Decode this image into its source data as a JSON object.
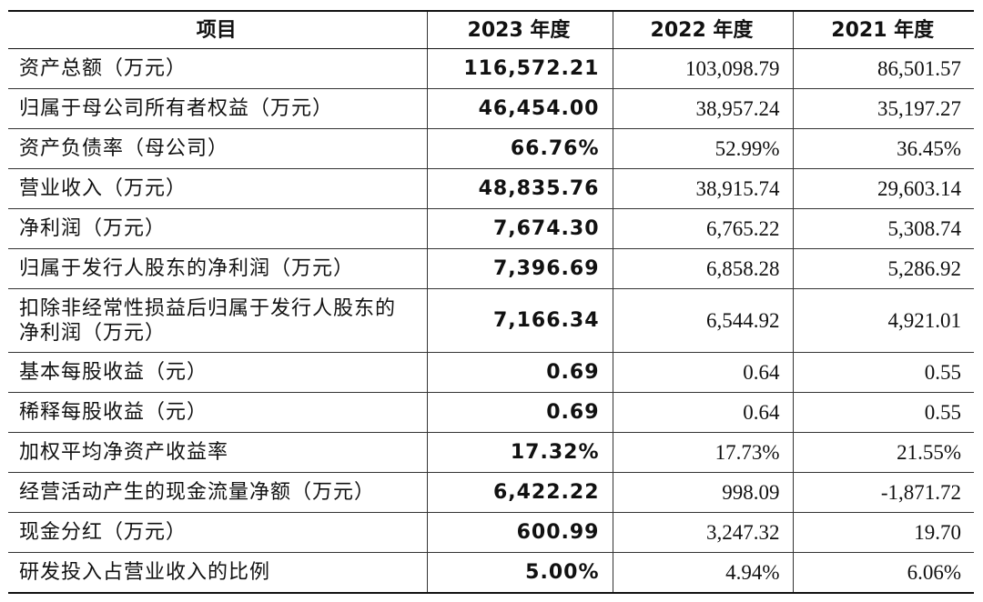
{
  "table": {
    "headers": [
      "项目",
      "2023 年度",
      "2022 年度",
      "2021 年度"
    ],
    "rows": [
      [
        "资产总额（万元）",
        "116,572.21",
        "103,098.79",
        "86,501.57"
      ],
      [
        "归属于母公司所有者权益（万元）",
        "46,454.00",
        "38,957.24",
        "35,197.27"
      ],
      [
        "资产负债率（母公司）",
        "66.76%",
        "52.99%",
        "36.45%"
      ],
      [
        "营业收入（万元）",
        "48,835.76",
        "38,915.74",
        "29,603.14"
      ],
      [
        "净利润（万元）",
        "7,674.30",
        "6,765.22",
        "5,308.74"
      ],
      [
        "归属于发行人股东的净利润（万元）",
        "7,396.69",
        "6,858.28",
        "5,286.92"
      ],
      [
        "扣除非经常性损益后归属于发行人股东的净利润（万元）",
        "7,166.34",
        "6,544.92",
        "4,921.01"
      ],
      [
        "基本每股收益（元）",
        "0.69",
        "0.64",
        "0.55"
      ],
      [
        "稀释每股收益（元）",
        "0.69",
        "0.64",
        "0.55"
      ],
      [
        "加权平均净资产收益率",
        "17.32%",
        "17.73%",
        "21.55%"
      ],
      [
        "经营活动产生的现金流量净额（万元）",
        "6,422.22",
        "998.09",
        "-1,871.72"
      ],
      [
        "现金分红（万元）",
        "600.99",
        "3,247.32",
        "19.70"
      ],
      [
        "研发投入占营业收入的比例",
        "5.00%",
        "4.94%",
        "6.06%"
      ]
    ]
  }
}
